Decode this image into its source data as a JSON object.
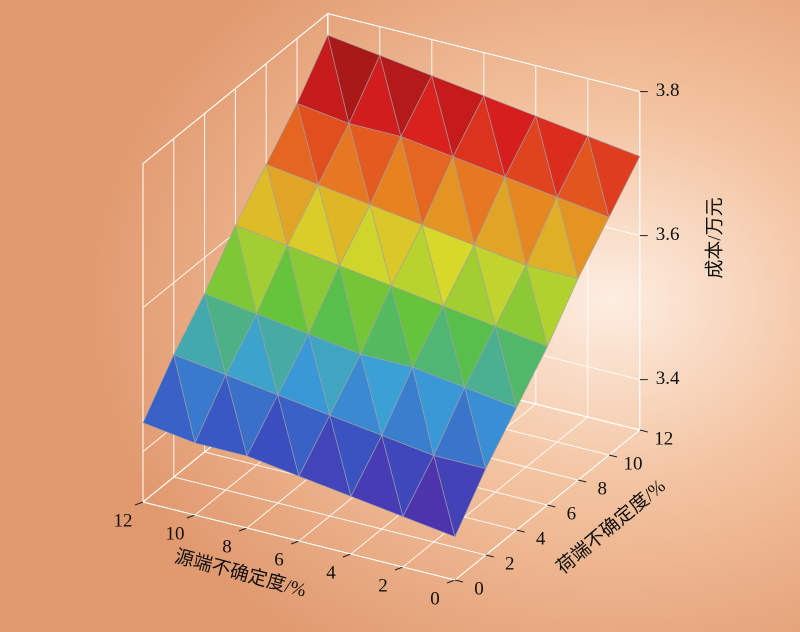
{
  "chart_data": {
    "type": "surface",
    "xlabel": "源端不确定度/%",
    "ylabel": "荷端不确定度/%",
    "zlabel": "成本/万元",
    "x": [
      0,
      2,
      4,
      6,
      8,
      10,
      12
    ],
    "y": [
      0,
      2,
      4,
      6,
      8,
      10,
      12
    ],
    "z": [
      [
        3.39,
        3.4,
        3.41,
        3.42,
        3.43,
        3.43,
        3.44
      ],
      [
        3.45,
        3.45,
        3.46,
        3.47,
        3.48,
        3.49,
        3.5
      ],
      [
        3.5,
        3.51,
        3.52,
        3.52,
        3.53,
        3.54,
        3.55
      ],
      [
        3.55,
        3.56,
        3.57,
        3.58,
        3.59,
        3.6,
        3.61
      ],
      [
        3.61,
        3.61,
        3.62,
        3.63,
        3.64,
        3.65,
        3.66
      ],
      [
        3.66,
        3.67,
        3.68,
        3.69,
        3.7,
        3.7,
        3.71
      ],
      [
        3.71,
        3.72,
        3.73,
        3.74,
        3.75,
        3.76,
        3.77
      ]
    ],
    "xlim": [
      0,
      12
    ],
    "ylim": [
      0,
      12
    ],
    "zlim": [
      3.33,
      3.8
    ],
    "xticks": [
      0,
      2,
      4,
      6,
      8,
      10,
      12
    ],
    "yticks": [
      0,
      2,
      4,
      6,
      8,
      10,
      12
    ],
    "zticks": [
      3.4,
      3.6,
      3.8
    ],
    "grid": true,
    "colormap": [
      "#5b1f9e",
      "#3a4fc0",
      "#3aa0d8",
      "#5cc23a",
      "#d8d82a",
      "#e87a20",
      "#d81e1e",
      "#7a1410"
    ]
  }
}
